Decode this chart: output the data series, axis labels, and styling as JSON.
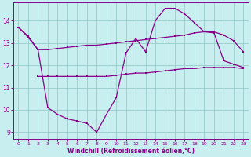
{
  "xlabel": "Windchill (Refroidissement éolien,°C)",
  "xlim": [
    -0.5,
    23.5
  ],
  "ylim": [
    8.7,
    14.8
  ],
  "yticks": [
    9,
    10,
    11,
    12,
    13,
    14
  ],
  "xticks": [
    0,
    1,
    2,
    3,
    4,
    5,
    6,
    7,
    8,
    9,
    10,
    11,
    12,
    13,
    14,
    15,
    16,
    17,
    18,
    19,
    20,
    21,
    22,
    23
  ],
  "bg_color": "#c8eef0",
  "line_color": "#880088",
  "grid_color": "#99cccc",
  "line1_x": [
    0,
    1,
    2,
    3,
    4,
    5,
    6,
    7,
    8,
    9,
    10,
    11,
    12,
    13,
    14,
    15,
    16,
    17,
    18,
    19,
    20,
    21,
    22,
    23
  ],
  "line1_y": [
    13.7,
    13.3,
    12.7,
    10.1,
    9.8,
    9.6,
    9.5,
    9.4,
    9.0,
    9.8,
    10.55,
    12.55,
    13.2,
    12.6,
    14.0,
    14.55,
    14.55,
    14.3,
    13.9,
    13.5,
    13.45,
    12.2,
    12.05,
    11.9
  ],
  "line2_x": [
    0,
    1,
    2,
    3,
    4,
    5,
    6,
    7,
    8,
    9,
    10,
    11,
    12,
    13,
    14,
    15,
    16,
    17,
    18,
    19,
    20,
    21,
    22,
    23
  ],
  "line2_y": [
    13.7,
    13.25,
    12.7,
    12.7,
    12.75,
    12.8,
    12.85,
    12.9,
    12.9,
    12.95,
    13.0,
    13.05,
    13.1,
    13.15,
    13.2,
    13.25,
    13.3,
    13.35,
    13.45,
    13.5,
    13.5,
    13.35,
    13.1,
    12.6
  ],
  "line3_x": [
    2,
    3,
    4,
    5,
    6,
    7,
    8,
    9,
    10,
    11,
    12,
    13,
    14,
    15,
    16,
    17,
    18,
    19,
    20,
    21,
    22,
    23
  ],
  "line3_y": [
    11.5,
    11.5,
    11.5,
    11.5,
    11.5,
    11.5,
    11.5,
    11.5,
    11.55,
    11.6,
    11.65,
    11.65,
    11.7,
    11.75,
    11.8,
    11.85,
    11.85,
    11.9,
    11.9,
    11.9,
    11.9,
    11.85
  ]
}
